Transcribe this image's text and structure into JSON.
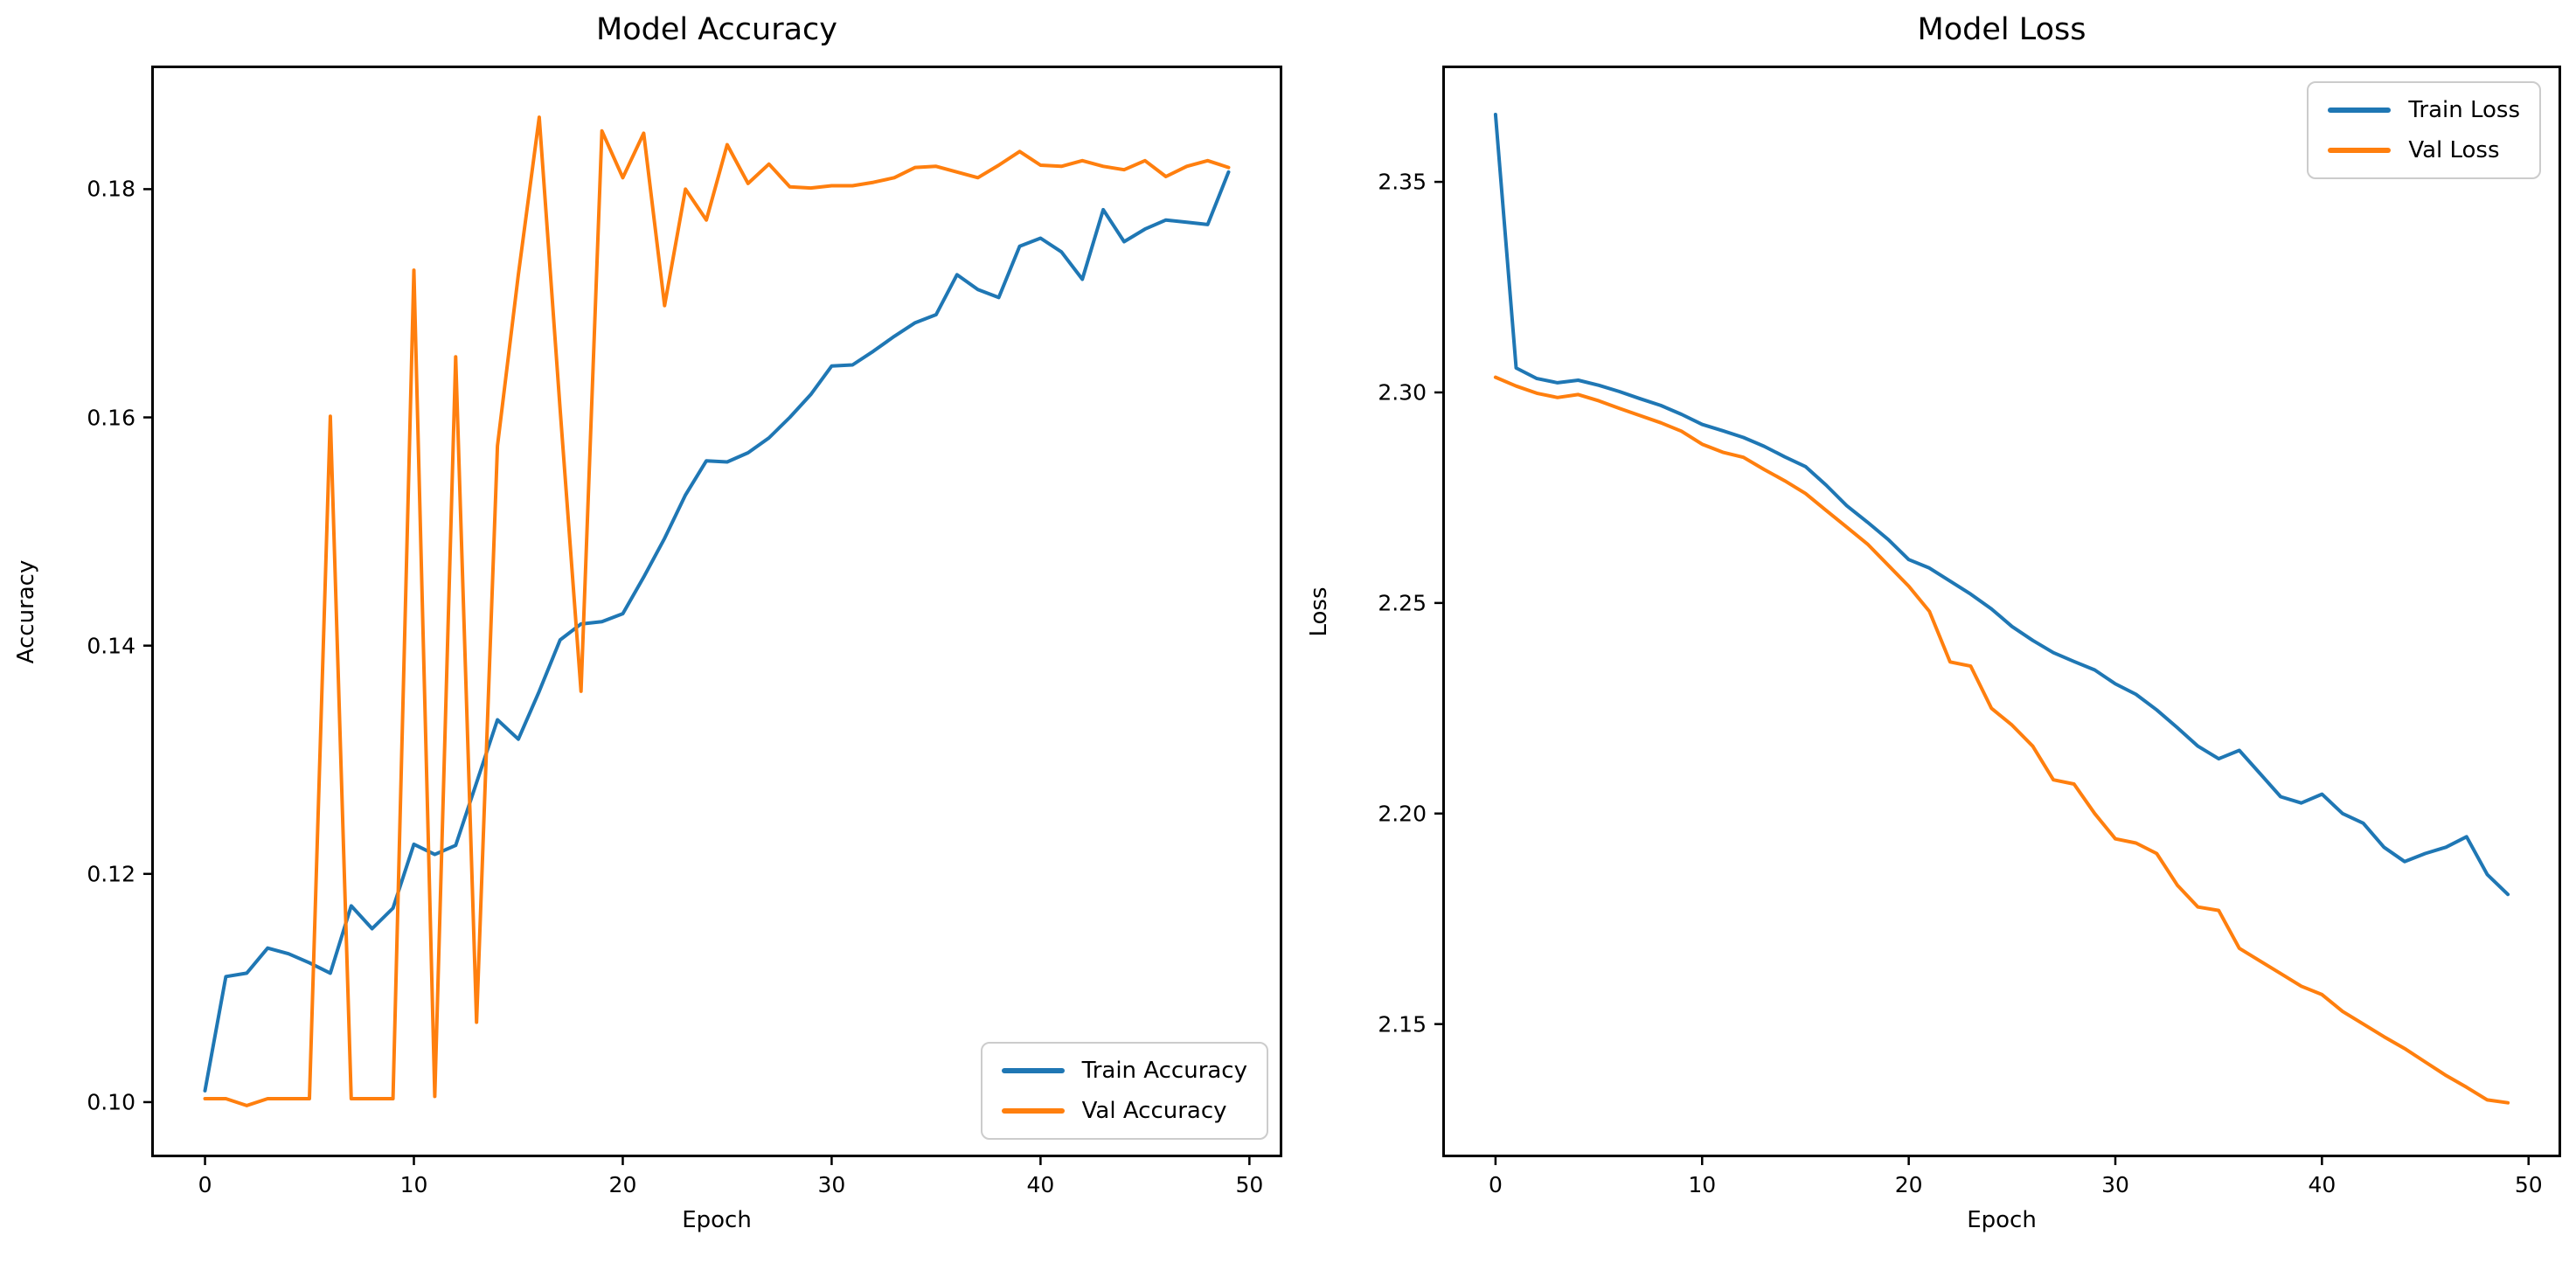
{
  "figure": {
    "background": "#ffffff",
    "spine_color": "#000000",
    "text_color": "#000000"
  },
  "palette": {
    "train": "#1f77b4",
    "val": "#ff7f0e",
    "legend_border": "#cccccc"
  },
  "chart_data": [
    {
      "type": "line",
      "title": "Model Accuracy",
      "xlabel": "Epoch",
      "ylabel": "Accuracy",
      "grid": false,
      "xlim": [
        -2.45,
        51.45
      ],
      "ylim": [
        0.0954,
        0.1906
      ],
      "xticks": [
        0,
        10,
        20,
        30,
        40,
        50
      ],
      "xtick_labels": [
        "0",
        "10",
        "20",
        "30",
        "40",
        "50"
      ],
      "yticks": [
        0.1,
        0.12,
        0.14,
        0.16,
        0.18
      ],
      "ytick_labels": [
        "0.10",
        "0.12",
        "0.14",
        "0.16",
        "0.18"
      ],
      "legend_position": "lower-right",
      "x": [
        0,
        1,
        2,
        3,
        4,
        5,
        6,
        7,
        8,
        9,
        10,
        11,
        12,
        13,
        14,
        15,
        16,
        17,
        18,
        19,
        20,
        21,
        22,
        23,
        24,
        25,
        26,
        27,
        28,
        29,
        30,
        31,
        32,
        33,
        34,
        35,
        36,
        37,
        38,
        39,
        40,
        41,
        42,
        43,
        44,
        45,
        46,
        47,
        48,
        49
      ],
      "series": [
        {
          "name": "Train Accuracy",
          "color": "#1f77b4",
          "values": [
            0.101,
            0.111,
            0.1113,
            0.1135,
            0.113,
            0.1122,
            0.1113,
            0.1172,
            0.1152,
            0.117,
            0.1226,
            0.1217,
            0.1225,
            0.128,
            0.1335,
            0.1318,
            0.136,
            0.1405,
            0.1419,
            0.1421,
            0.1428,
            0.146,
            0.1494,
            0.1532,
            0.1562,
            0.1561,
            0.1569,
            0.1582,
            0.16,
            0.162,
            0.1645,
            0.1646,
            0.1658,
            0.1671,
            0.1683,
            0.169,
            0.1725,
            0.1712,
            0.1705,
            0.175,
            0.1757,
            0.1745,
            0.1721,
            0.1782,
            0.1754,
            0.1765,
            0.1773,
            0.1771,
            0.1769,
            0.1815
          ]
        },
        {
          "name": "Val Accuracy",
          "color": "#ff7f0e",
          "values": [
            0.1003,
            0.1003,
            0.0997,
            0.1003,
            0.1003,
            0.1003,
            0.1601,
            0.1003,
            0.1003,
            0.1003,
            0.1729,
            0.1005,
            0.1653,
            0.107,
            0.1575,
            0.1725,
            0.1863,
            0.1607,
            0.136,
            0.1851,
            0.181,
            0.1849,
            0.1698,
            0.18,
            0.1773,
            0.1839,
            0.1805,
            0.1822,
            0.1802,
            0.1801,
            0.1803,
            0.1803,
            0.1806,
            0.181,
            0.1819,
            0.182,
            0.1815,
            0.181,
            0.1821,
            0.1833,
            0.1821,
            0.182,
            0.1825,
            0.182,
            0.1817,
            0.1825,
            0.1811,
            0.182,
            0.1825,
            0.1819
          ]
        }
      ]
    },
    {
      "type": "line",
      "title": "Model Loss",
      "xlabel": "Epoch",
      "ylabel": "Loss",
      "grid": false,
      "xlim": [
        -2.45,
        51.45
      ],
      "ylim": [
        2.119,
        2.377
      ],
      "xticks": [
        0,
        10,
        20,
        30,
        40,
        50
      ],
      "xtick_labels": [
        "0",
        "10",
        "20",
        "30",
        "40",
        "50"
      ],
      "yticks": [
        2.15,
        2.2,
        2.25,
        2.3,
        2.35
      ],
      "ytick_labels": [
        "2.15",
        "2.20",
        "2.25",
        "2.30",
        "2.35"
      ],
      "legend_position": "upper-right",
      "x": [
        0,
        1,
        2,
        3,
        4,
        5,
        6,
        7,
        8,
        9,
        10,
        11,
        12,
        13,
        14,
        15,
        16,
        17,
        18,
        19,
        20,
        21,
        22,
        23,
        24,
        25,
        26,
        27,
        28,
        29,
        30,
        31,
        32,
        33,
        34,
        35,
        36,
        37,
        38,
        39,
        40,
        41,
        42,
        43,
        44,
        45,
        46,
        47,
        48,
        49
      ],
      "series": [
        {
          "name": "Train Loss",
          "color": "#1f77b4",
          "values": [
            2.366,
            2.3058,
            2.3033,
            2.3023,
            2.3029,
            2.3017,
            2.3002,
            2.2985,
            2.2969,
            2.2948,
            2.2924,
            2.2909,
            2.2893,
            2.2872,
            2.2847,
            2.2824,
            2.278,
            2.2731,
            2.2692,
            2.2651,
            2.2603,
            2.2583,
            2.2552,
            2.2521,
            2.2486,
            2.2444,
            2.2411,
            2.2382,
            2.2361,
            2.2341,
            2.2308,
            2.2283,
            2.2246,
            2.2204,
            2.216,
            2.213,
            2.215,
            2.2095,
            2.204,
            2.2025,
            2.2046,
            2.2,
            2.1977,
            2.192,
            2.1886,
            2.1905,
            2.192,
            2.1945,
            2.1855,
            2.1808
          ]
        },
        {
          "name": "Val Loss",
          "color": "#ff7f0e",
          "values": [
            2.3036,
            2.3015,
            2.2998,
            2.2988,
            2.2995,
            2.298,
            2.2962,
            2.2945,
            2.2928,
            2.2908,
            2.2877,
            2.2858,
            2.2846,
            2.2817,
            2.279,
            2.276,
            2.272,
            2.268,
            2.264,
            2.259,
            2.254,
            2.248,
            2.236,
            2.235,
            2.225,
            2.221,
            2.216,
            2.208,
            2.207,
            2.2,
            2.194,
            2.193,
            2.1905,
            2.183,
            2.1778,
            2.177,
            2.168,
            2.165,
            2.162,
            2.159,
            2.157,
            2.153,
            2.15,
            2.147,
            2.1442,
            2.141,
            2.1378,
            2.135,
            2.132,
            2.1313
          ]
        }
      ]
    }
  ]
}
